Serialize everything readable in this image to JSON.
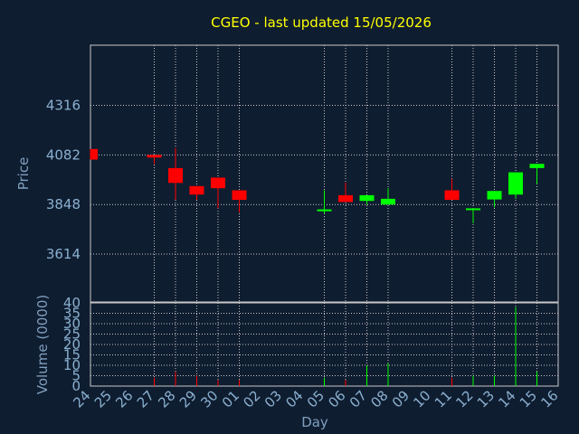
{
  "colors": {
    "background": "#0f1d30",
    "title": "#ffff00",
    "axis_text": "#8ab0d0",
    "axis_label": "#7f9fbf",
    "grid": "#c8c8c8",
    "up": "#00ff00",
    "down": "#ff0000"
  },
  "chart_data": {
    "type": "candlestick",
    "title": "CGEO - last updated 15/05/2026",
    "xlabel": "Day",
    "ylabel": "Price",
    "volume_label": "Volume (0000)",
    "grid": true,
    "x_ticks": [
      "24",
      "25",
      "26",
      "27",
      "28",
      "29",
      "30",
      "01",
      "02",
      "03",
      "04",
      "05",
      "06",
      "07",
      "08",
      "09",
      "10",
      "11",
      "12",
      "13",
      "14",
      "15",
      "16"
    ],
    "price_ticks": [
      "3614",
      "3848",
      "4082",
      "4316"
    ],
    "price_ylim": [
      3388,
      4600
    ],
    "volume_ticks": [
      "0",
      "5",
      "10",
      "15",
      "20",
      "25",
      "30",
      "35",
      "40"
    ],
    "volume_ylim": [
      0,
      40
    ],
    "candles": [
      {
        "day": "24",
        "open": 4110,
        "close": 4060,
        "high": 4110,
        "low": 4060,
        "volume": 0
      },
      {
        "day": "27",
        "open": 4082,
        "close": 4070,
        "high": 4082,
        "low": 4040,
        "volume": 4
      },
      {
        "day": "28",
        "open": 4020,
        "close": 3950,
        "high": 4115,
        "low": 3870,
        "volume": 7
      },
      {
        "day": "29",
        "open": 3935,
        "close": 3895,
        "high": 3935,
        "low": 3870,
        "volume": 5
      },
      {
        "day": "30",
        "open": 3975,
        "close": 3925,
        "high": 3975,
        "low": 3830,
        "volume": 3
      },
      {
        "day": "01",
        "open": 3915,
        "close": 3870,
        "high": 3915,
        "low": 3810,
        "volume": 3
      },
      {
        "day": "05",
        "open": 3820,
        "close": 3825,
        "high": 3915,
        "low": 3805,
        "volume": 4
      },
      {
        "day": "06",
        "open": 3892,
        "close": 3860,
        "high": 3952,
        "low": 3860,
        "volume": 3
      },
      {
        "day": "07",
        "open": 3865,
        "close": 3892,
        "high": 3892,
        "low": 3848,
        "volume": 10
      },
      {
        "day": "08",
        "open": 3848,
        "close": 3875,
        "high": 3925,
        "low": 3848,
        "volume": 11
      },
      {
        "day": "11",
        "open": 3915,
        "close": 3870,
        "high": 3970,
        "low": 3870,
        "volume": 4
      },
      {
        "day": "12",
        "open": 3823,
        "close": 3830,
        "high": 3830,
        "low": 3760,
        "volume": 5
      },
      {
        "day": "13",
        "open": 3872,
        "close": 3912,
        "high": 3912,
        "low": 3835,
        "volume": 5
      },
      {
        "day": "14",
        "open": 3895,
        "close": 4000,
        "high": 4000,
        "low": 3875,
        "volume": 38
      },
      {
        "day": "15",
        "open": 4020,
        "close": 4040,
        "high": 4040,
        "low": 3945,
        "volume": 7
      }
    ]
  }
}
